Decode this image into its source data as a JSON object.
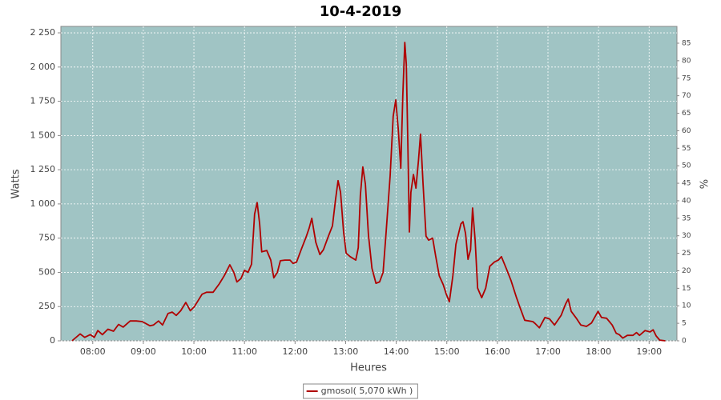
{
  "chart_data": {
    "type": "line",
    "title": "10-4-2019",
    "x_label": "Heures",
    "y_label": "Watts",
    "y2_label": "%",
    "x": [
      7.59,
      7.75,
      7.84,
      7.95,
      8.03,
      8.1,
      8.19,
      8.3,
      8.41,
      8.51,
      8.6,
      8.74,
      8.86,
      8.98,
      9.13,
      9.2,
      9.3,
      9.38,
      9.49,
      9.57,
      9.65,
      9.74,
      9.84,
      9.93,
      10.01,
      10.16,
      10.25,
      10.38,
      10.5,
      10.6,
      10.71,
      10.79,
      10.85,
      10.93,
      11.0,
      11.07,
      11.14,
      11.2,
      11.25,
      11.3,
      11.34,
      11.44,
      11.52,
      11.58,
      11.65,
      11.71,
      11.8,
      11.9,
      11.96,
      12.03,
      12.12,
      12.22,
      12.28,
      12.33,
      12.41,
      12.49,
      12.56,
      12.66,
      12.74,
      12.8,
      12.85,
      12.9,
      12.96,
      13.01,
      13.09,
      13.2,
      13.25,
      13.29,
      13.34,
      13.39,
      13.45,
      13.52,
      13.6,
      13.67,
      13.74,
      13.8,
      13.88,
      13.94,
      13.99,
      14.04,
      14.09,
      14.13,
      14.17,
      14.2,
      14.23,
      14.26,
      14.29,
      14.34,
      14.39,
      14.44,
      14.48,
      14.53,
      14.59,
      14.64,
      14.72,
      14.78,
      14.85,
      14.93,
      14.99,
      15.05,
      15.12,
      15.18,
      15.28,
      15.32,
      15.37,
      15.42,
      15.47,
      15.51,
      15.56,
      15.61,
      15.69,
      15.77,
      15.85,
      15.94,
      16.02,
      16.08,
      16.18,
      16.27,
      16.37,
      16.46,
      16.54,
      16.7,
      16.75,
      16.83,
      16.94,
      17.03,
      17.13,
      17.26,
      17.35,
      17.4,
      17.46,
      17.56,
      17.65,
      17.76,
      17.86,
      17.99,
      18.06,
      18.16,
      18.27,
      18.35,
      18.41,
      18.48,
      18.57,
      18.68,
      18.75,
      18.81,
      18.92,
      19.02,
      19.08,
      19.14,
      19.21,
      19.32
    ],
    "series": [
      {
        "name": "gmosol( 5,070 kWh )",
        "color": "#b00000",
        "values": [
          0,
          50,
          25,
          45,
          25,
          75,
          45,
          85,
          70,
          120,
          100,
          145,
          145,
          140,
          110,
          115,
          145,
          115,
          200,
          210,
          185,
          220,
          280,
          220,
          250,
          340,
          355,
          355,
          415,
          475,
          555,
          500,
          430,
          455,
          515,
          500,
          560,
          925,
          1010,
          855,
          650,
          660,
          590,
          460,
          500,
          585,
          590,
          590,
          565,
          575,
          665,
          760,
          825,
          895,
          720,
          630,
          665,
          765,
          840,
          1030,
          1170,
          1085,
          795,
          640,
          615,
          590,
          680,
          1060,
          1270,
          1145,
          775,
          530,
          420,
          430,
          500,
          795,
          1205,
          1640,
          1760,
          1550,
          1260,
          1790,
          2180,
          2020,
          1440,
          795,
          1085,
          1215,
          1115,
          1320,
          1510,
          1145,
          765,
          735,
          750,
          620,
          475,
          410,
          340,
          285,
          475,
          705,
          855,
          870,
          785,
          595,
          665,
          970,
          735,
          385,
          315,
          385,
          545,
          575,
          590,
          615,
          525,
          440,
          325,
          230,
          150,
          140,
          125,
          95,
          170,
          160,
          115,
          185,
          270,
          305,
          215,
          165,
          115,
          105,
          130,
          215,
          170,
          165,
          115,
          55,
          45,
          20,
          40,
          40,
          60,
          40,
          75,
          65,
          80,
          35,
          5,
          0
        ]
      }
    ],
    "xlim": [
      7.37,
      19.55
    ],
    "xticks": [
      {
        "value": 8,
        "label": "08:00"
      },
      {
        "value": 9,
        "label": "09:00"
      },
      {
        "value": 10,
        "label": "10:00"
      },
      {
        "value": 11,
        "label": "11:00"
      },
      {
        "value": 12,
        "label": "12:00"
      },
      {
        "value": 13,
        "label": "13:00"
      },
      {
        "value": 14,
        "label": "14:00"
      },
      {
        "value": 15,
        "label": "15:00"
      },
      {
        "value": 16,
        "label": "16:00"
      },
      {
        "value": 17,
        "label": "17:00"
      },
      {
        "value": 18,
        "label": "18:00"
      },
      {
        "value": 19,
        "label": "19:00"
      }
    ],
    "ylim": [
      0,
      2297
    ],
    "yticks": [
      0,
      250,
      500,
      750,
      {
        "value": 1000,
        "label": "1 000"
      },
      {
        "value": 1250,
        "label": "1 250"
      },
      {
        "value": 1500,
        "label": "1 500"
      },
      {
        "value": 1750,
        "label": "1 750"
      },
      {
        "value": 2000,
        "label": "2 000"
      },
      {
        "value": 2250,
        "label": "2 250"
      }
    ],
    "y2lim": [
      0,
      89.8
    ],
    "y2ticks": [
      0,
      5,
      10,
      15,
      20,
      25,
      30,
      35,
      40,
      45,
      50,
      55,
      60,
      65,
      70,
      75,
      80,
      85
    ],
    "grid": true,
    "plot_background": "#a0c4c4",
    "legend": "bottom"
  }
}
